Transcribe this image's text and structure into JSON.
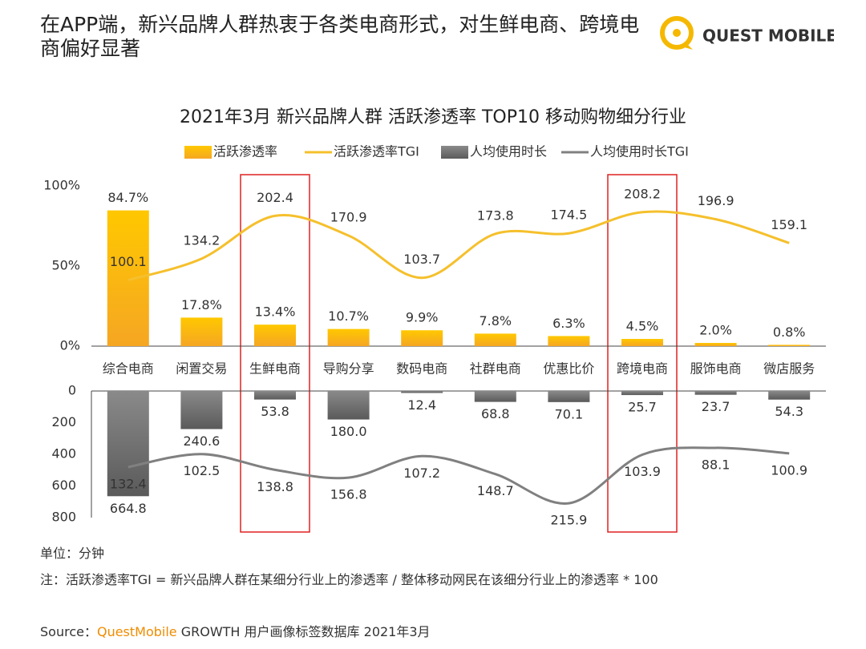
{
  "header": {
    "title": "在APP端，新兴品牌人群热衷于各类电商形式，对生鲜电商、跨境电商偏好显著",
    "logo": "QUEST MOBILE"
  },
  "chart_data": [
    {
      "type": "bar",
      "title": "2021年3月  新兴品牌人群 活跃渗透率 TOP10 移动购物细分行业",
      "categories": [
        "综合电商",
        "闲置交易",
        "生鲜电商",
        "导购分享",
        "数码电商",
        "社群电商",
        "优惠比价",
        "跨境电商",
        "服饰电商",
        "微店服务"
      ],
      "ylim": [
        0,
        100
      ],
      "yticks": [
        {
          "value": 0,
          "label": "0%"
        },
        {
          "value": 50,
          "label": "50%"
        },
        {
          "value": 100,
          "label": "100%"
        }
      ],
      "y2lim": [
        -5,
        250
      ],
      "series": [
        {
          "name": "活跃渗透率",
          "type": "bar",
          "color": "#f7b500",
          "values": [
            84.7,
            17.8,
            13.4,
            10.7,
            9.9,
            7.8,
            6.3,
            4.5,
            2.0,
            0.8
          ],
          "value_labels": [
            "84.7%",
            "17.8%",
            "13.4%",
            "10.7%",
            "9.9%",
            "7.8%",
            "6.3%",
            "4.5%",
            "2.0%",
            "0.8%"
          ]
        },
        {
          "name": "活跃渗透率TGI",
          "type": "line",
          "axis": "y2",
          "color": "#f5c02c",
          "values": [
            100.1,
            134.2,
            202.4,
            170.9,
            103.7,
            173.8,
            174.5,
            208.2,
            196.9,
            159.1
          ]
        }
      ]
    },
    {
      "type": "bar",
      "inverted": true,
      "ylim": [
        0,
        800
      ],
      "yticks": [
        0,
        200,
        400,
        600,
        800
      ],
      "y2lim": [
        -43,
        249
      ],
      "series": [
        {
          "name": "人均使用时长",
          "type": "bar",
          "color": "#7b7b7b",
          "values": [
            664.8,
            240.6,
            53.8,
            180.0,
            12.4,
            68.8,
            70.1,
            25.7,
            23.7,
            54.3
          ],
          "value_labels": [
            "664.8",
            "240.6",
            "53.8",
            "180.0",
            "12.4",
            "68.8",
            "70.1",
            "25.7",
            "23.7",
            "54.3"
          ]
        },
        {
          "name": "人均使用时长TGI",
          "type": "line",
          "axis": "y2",
          "color": "#808080",
          "values": [
            132.4,
            102.5,
            138.8,
            156.8,
            107.2,
            148.7,
            215.9,
            103.9,
            88.1,
            100.9
          ]
        }
      ]
    }
  ],
  "notes": {
    "unit": "单位：分钟",
    "formula": "注：活跃渗透率TGI = 新兴品牌人群在某细分行业上的渗透率 / 整体移动网民在该细分行业上的渗透率 * 100",
    "source_prefix": "Source：",
    "source_brand": "QuestMobile",
    "source_rest": " GROWTH 用户画像标签数据库 2021年3月"
  }
}
